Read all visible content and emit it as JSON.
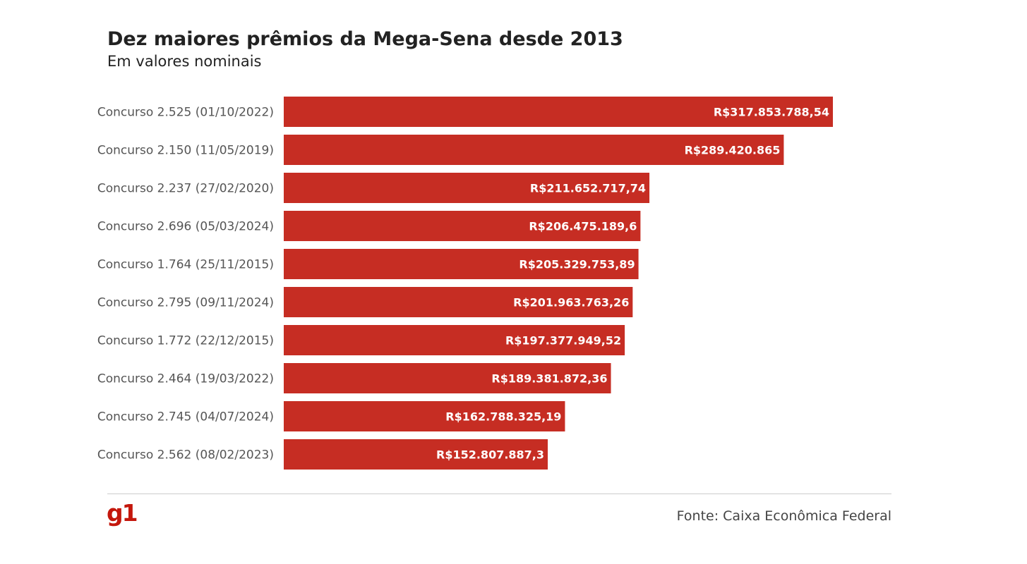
{
  "title": "Dez maiores prêmios da Mega-Sena desde 2013",
  "subtitle": "Em valores nominais",
  "source": "Fonte: Caixa Econômica Federal",
  "logo": "g1",
  "colors": {
    "bar": "#c62d23",
    "logo": "#c4170c"
  },
  "chart_data": {
    "type": "bar",
    "orientation": "horizontal",
    "categories": [
      "Concurso 2.525 (01/10/2022)",
      "Concurso 2.150 (11/05/2019)",
      "Concurso 2.237 (27/02/2020)",
      "Concurso 2.696 (05/03/2024)",
      "Concurso 1.764 (25/11/2015)",
      "Concurso 2.795 (09/11/2024)",
      "Concurso 1.772 (22/12/2015)",
      "Concurso 2.464 (19/03/2022)",
      "Concurso 2.745 (04/07/2024)",
      "Concurso 2.562 (08/02/2023)"
    ],
    "values": [
      317853788.54,
      289420865,
      211652717.74,
      206475189.6,
      205329753.89,
      201963763.26,
      197377949.52,
      189381872.36,
      162788325.19,
      152807887.3
    ],
    "data_labels": [
      "R$317.853.788,54",
      "R$289.420.865",
      "R$211.652.717,74",
      "R$206.475.189,6",
      "R$205.329.753,89",
      "R$201.963.763,26",
      "R$197.377.949,52",
      "R$189.381.872,36",
      "R$162.788.325,19",
      "R$152.807.887,3"
    ],
    "xlim": [
      0,
      317853788.54
    ],
    "grid": false,
    "legend": "none"
  }
}
